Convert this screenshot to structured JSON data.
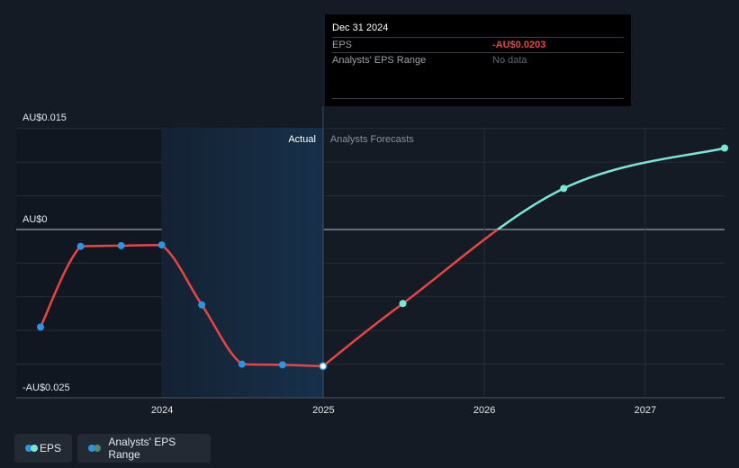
{
  "tooltip": {
    "date": "Dec 31 2024",
    "rows": [
      {
        "label": "EPS",
        "value": "-AU$0.0203",
        "color": "#e84545"
      },
      {
        "label": "Analysts' EPS Range",
        "value": "No data",
        "color": "#5f6570"
      }
    ]
  },
  "legend": [
    {
      "label": "EPS",
      "colors": [
        "#2e93e0",
        "#7ae6d8"
      ]
    },
    {
      "label": "Analysts' EPS Range",
      "colors": [
        "#2e93e0",
        "#4a8a84"
      ]
    }
  ],
  "chart_data": {
    "type": "line",
    "y_ticks": [
      {
        "value": 0.015,
        "label": "AU$0.015"
      },
      {
        "value": 0,
        "label": "AU$0"
      },
      {
        "value": -0.025,
        "label": "-AU$0.025"
      }
    ],
    "ylim": [
      -0.025,
      0.015
    ],
    "xlim": [
      "2023-03-31",
      "2027-06-30"
    ],
    "x_ticks": [
      {
        "value": "2024-01-01",
        "label": "2024"
      },
      {
        "value": "2025-01-01",
        "label": "2025"
      },
      {
        "value": "2026-01-01",
        "label": "2026"
      },
      {
        "value": "2027-01-01",
        "label": "2027"
      }
    ],
    "regions": {
      "highlight_start": "2024-01-01",
      "divider": "2024-12-31",
      "actual_label": "Actual",
      "forecast_label": "Analysts Forecasts"
    },
    "series": [
      {
        "name": "EPS",
        "segment": "actual",
        "color": "#e84545",
        "point_color": "#2e93e0",
        "points": [
          {
            "x": "2023-03-31",
            "y": -0.0145
          },
          {
            "x": "2023-06-30",
            "y": -0.0025
          },
          {
            "x": "2023-09-30",
            "y": -0.0024
          },
          {
            "x": "2023-12-31",
            "y": -0.0023
          },
          {
            "x": "2024-03-31",
            "y": -0.0112
          },
          {
            "x": "2024-06-30",
            "y": -0.02
          },
          {
            "x": "2024-09-30",
            "y": -0.0201
          },
          {
            "x": "2024-12-31",
            "y": -0.0203
          }
        ]
      },
      {
        "name": "EPS",
        "segment": "forecast",
        "color_below_zero": "#e84545",
        "color_above_zero": "#7ae6d8",
        "point_color": "#7ae6d8",
        "points": [
          {
            "x": "2024-12-31",
            "y": -0.0203
          },
          {
            "x": "2025-06-30",
            "y": -0.011
          },
          {
            "x": "2026-06-30",
            "y": 0.0061
          },
          {
            "x": "2027-06-30",
            "y": 0.0121
          }
        ]
      }
    ],
    "colors": {
      "background": "#151b24",
      "grid": "#262d38",
      "zero_line": "#b9bec6",
      "highlight": "#15263a"
    }
  }
}
